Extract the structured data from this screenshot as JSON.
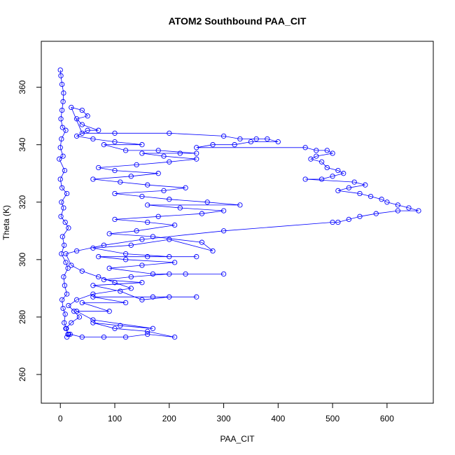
{
  "chart_data": {
    "type": "scatter",
    "title": "ATOM2 Southbound PAA_CIT",
    "xlabel": "PAA_CIT",
    "ylabel": "Theta (K)",
    "xlim": [
      -35,
      685
    ],
    "ylim": [
      250,
      376
    ],
    "xticks": [
      0,
      100,
      200,
      300,
      400,
      500,
      600
    ],
    "yticks": [
      260,
      280,
      300,
      320,
      340,
      360
    ],
    "series_color": "#0000ff",
    "marker": "open-circle",
    "connected": true,
    "series": [
      {
        "points": [
          [
            0,
            366
          ],
          [
            1,
            364
          ],
          [
            3,
            361
          ],
          [
            6,
            358
          ],
          [
            5,
            355
          ],
          [
            3,
            352
          ],
          [
            1,
            349
          ],
          [
            4,
            346
          ],
          [
            10,
            345
          ],
          [
            2,
            342
          ],
          [
            0,
            339
          ],
          [
            5,
            336
          ],
          [
            -2,
            335
          ],
          [
            8,
            331
          ],
          [
            0,
            328
          ],
          [
            3,
            325
          ],
          [
            12,
            323
          ],
          [
            2,
            320
          ],
          [
            6,
            318
          ],
          [
            1,
            315
          ],
          [
            9,
            313
          ],
          [
            15,
            311
          ],
          [
            4,
            308
          ],
          [
            7,
            305
          ],
          [
            2,
            302
          ],
          [
            10,
            299
          ],
          [
            14,
            297
          ],
          [
            6,
            294
          ],
          [
            8,
            291
          ],
          [
            12,
            288
          ],
          [
            3,
            286
          ],
          [
            5,
            283
          ],
          [
            9,
            281
          ],
          [
            7,
            278
          ],
          [
            11,
            276
          ],
          [
            14,
            274
          ],
          [
            12,
            273
          ],
          [
            18,
            274
          ],
          [
            40,
            273
          ],
          [
            80,
            273
          ],
          [
            120,
            273
          ],
          [
            160,
            274
          ],
          [
            210,
            273
          ],
          [
            160,
            275
          ],
          [
            100,
            276
          ],
          [
            60,
            278
          ],
          [
            110,
            277
          ],
          [
            170,
            276
          ],
          [
            60,
            279
          ],
          [
            30,
            282
          ],
          [
            90,
            282
          ],
          [
            40,
            285
          ],
          [
            120,
            285
          ],
          [
            60,
            287
          ],
          [
            170,
            287
          ],
          [
            250,
            287
          ],
          [
            200,
            287
          ],
          [
            150,
            286
          ],
          [
            110,
            289
          ],
          [
            60,
            291
          ],
          [
            150,
            292
          ],
          [
            80,
            293
          ],
          [
            130,
            294
          ],
          [
            200,
            295
          ],
          [
            300,
            295
          ],
          [
            230,
            295
          ],
          [
            170,
            295
          ],
          [
            90,
            297
          ],
          [
            150,
            298
          ],
          [
            210,
            299
          ],
          [
            120,
            300
          ],
          [
            70,
            301
          ],
          [
            160,
            301
          ],
          [
            250,
            301
          ],
          [
            200,
            301
          ],
          [
            120,
            302
          ],
          [
            60,
            304
          ],
          [
            130,
            305
          ],
          [
            200,
            307
          ],
          [
            280,
            303
          ],
          [
            260,
            306
          ],
          [
            170,
            308
          ],
          [
            90,
            309
          ],
          [
            140,
            310
          ],
          [
            210,
            312
          ],
          [
            160,
            313
          ],
          [
            100,
            314
          ],
          [
            180,
            315
          ],
          [
            260,
            316
          ],
          [
            300,
            317
          ],
          [
            220,
            318
          ],
          [
            160,
            319
          ],
          [
            330,
            319
          ],
          [
            270,
            320
          ],
          [
            200,
            321
          ],
          [
            150,
            322
          ],
          [
            100,
            323
          ],
          [
            190,
            324
          ],
          [
            230,
            325
          ],
          [
            160,
            326
          ],
          [
            110,
            327
          ],
          [
            60,
            328
          ],
          [
            130,
            329
          ],
          [
            180,
            330
          ],
          [
            100,
            331
          ],
          [
            70,
            332
          ],
          [
            140,
            333
          ],
          [
            200,
            334
          ],
          [
            250,
            335
          ],
          [
            190,
            336
          ],
          [
            150,
            337
          ],
          [
            220,
            337
          ],
          [
            250,
            337
          ],
          [
            180,
            338
          ],
          [
            120,
            338
          ],
          [
            80,
            340
          ],
          [
            150,
            340
          ],
          [
            100,
            341
          ],
          [
            60,
            342
          ],
          [
            30,
            343
          ],
          [
            50,
            345
          ],
          [
            70,
            345
          ],
          [
            40,
            347
          ],
          [
            30,
            349
          ],
          [
            50,
            350
          ],
          [
            40,
            352
          ],
          [
            20,
            353
          ],
          [
            40,
            344
          ],
          [
            100,
            344
          ],
          [
            200,
            344
          ],
          [
            300,
            343
          ],
          [
            330,
            342
          ],
          [
            360,
            342
          ],
          [
            380,
            342
          ],
          [
            400,
            341
          ],
          [
            350,
            341
          ],
          [
            320,
            340
          ],
          [
            280,
            340
          ],
          [
            250,
            339
          ],
          [
            450,
            339
          ],
          [
            470,
            338
          ],
          [
            490,
            338
          ],
          [
            500,
            337
          ],
          [
            470,
            336
          ],
          [
            460,
            335
          ],
          [
            480,
            334
          ],
          [
            490,
            332
          ],
          [
            510,
            331
          ],
          [
            520,
            330
          ],
          [
            500,
            329
          ],
          [
            480,
            328
          ],
          [
            450,
            328
          ],
          [
            540,
            327
          ],
          [
            560,
            326
          ],
          [
            530,
            325
          ],
          [
            510,
            324
          ],
          [
            550,
            323
          ],
          [
            570,
            322
          ],
          [
            590,
            321
          ],
          [
            600,
            320
          ],
          [
            620,
            319
          ],
          [
            640,
            318
          ],
          [
            658,
            317
          ],
          [
            620,
            317
          ],
          [
            580,
            316
          ],
          [
            550,
            315
          ],
          [
            530,
            314
          ],
          [
            510,
            313
          ],
          [
            500,
            313
          ],
          [
            300,
            310
          ],
          [
            150,
            307
          ],
          [
            80,
            305
          ],
          [
            30,
            303
          ],
          [
            10,
            302
          ],
          [
            20,
            298
          ],
          [
            40,
            296
          ],
          [
            70,
            294
          ],
          [
            100,
            292
          ],
          [
            130,
            290
          ],
          [
            60,
            288
          ],
          [
            30,
            286
          ],
          [
            15,
            284
          ],
          [
            25,
            282
          ],
          [
            35,
            280
          ],
          [
            20,
            278
          ],
          [
            10,
            276
          ],
          [
            15,
            274
          ]
        ]
      }
    ]
  }
}
